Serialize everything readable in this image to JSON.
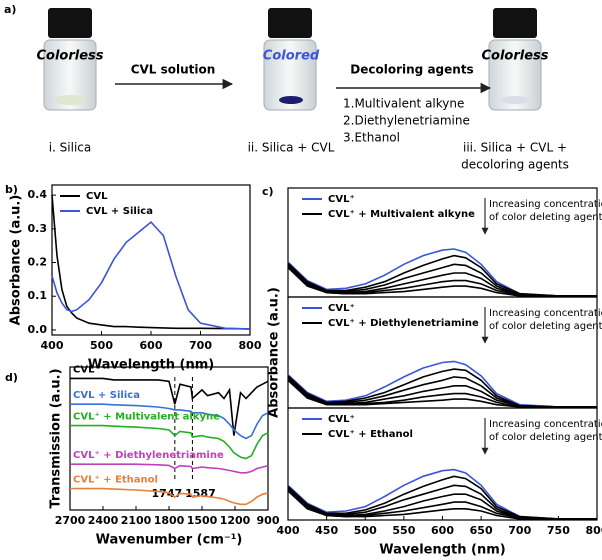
{
  "panel_a": {
    "label": "a)",
    "samples": [
      {
        "state": "Colorless",
        "caption": [
          "i. Silica"
        ]
      },
      {
        "state": "Colored",
        "caption": [
          "ii. Silica + CVL"
        ]
      },
      {
        "state": "Colorless",
        "caption": [
          "iii. Silica + CVL +",
          "decoloring agents"
        ]
      }
    ],
    "steps": [
      {
        "title": "CVL solution"
      },
      {
        "title": "Decoloring agents",
        "items": [
          "1.Multivalent alkyne",
          "2.Diethylenetriamine",
          "3.Ethanol"
        ]
      }
    ]
  },
  "chart_data": [
    {
      "type": "line",
      "panel": "b)",
      "xlabel": "Wavelength (nm)",
      "ylabel": "Absorbance (a.u.)",
      "x": [
        400,
        410,
        420,
        430,
        440,
        450,
        475,
        500,
        525,
        550,
        575,
        600,
        625,
        650,
        675,
        700,
        750,
        800
      ],
      "xlim": [
        400,
        800
      ],
      "xticks": [
        400,
        500,
        600,
        700,
        800
      ],
      "ylim": [
        -0.015,
        0.43
      ],
      "yticks": [
        {
          "value": 0,
          "label": "0.0"
        },
        0.1,
        0.2,
        0.3,
        0.4
      ],
      "series": [
        {
          "name": "CVL",
          "color": "#000000",
          "values": [
            0.4,
            0.22,
            0.12,
            0.07,
            0.05,
            0.035,
            0.02,
            0.015,
            0.01,
            0.01,
            0.008,
            0.007,
            0.006,
            0.005,
            0.005,
            0.005,
            0.004,
            0.003
          ]
        },
        {
          "name": "CVL + Silica",
          "color": "#3b55d9",
          "values": [
            0.16,
            0.11,
            0.08,
            0.06,
            0.055,
            0.06,
            0.09,
            0.14,
            0.21,
            0.26,
            0.29,
            0.32,
            0.28,
            0.16,
            0.06,
            0.02,
            0.005,
            0.003
          ]
        }
      ]
    },
    {
      "type": "line",
      "panel": "c)",
      "annotation": [
        "Increasing concentration",
        "of color deleting agent"
      ],
      "x": [
        400,
        425,
        450,
        475,
        500,
        525,
        550,
        575,
        600,
        615,
        630,
        650,
        670,
        700,
        750,
        800
      ],
      "xlim": [
        400,
        800
      ],
      "ylim": [
        0,
        1
      ],
      "series": [
        {
          "name": "CVL⁺",
          "color": "#3b55d9",
          "values": [
            0.32,
            0.15,
            0.07,
            0.08,
            0.12,
            0.2,
            0.3,
            0.38,
            0.43,
            0.44,
            0.41,
            0.3,
            0.14,
            0.03,
            0.01,
            0.01
          ]
        },
        {
          "name": "CVL⁺ + Multivalent alkyne",
          "color": "#000000",
          "values": [
            0.31,
            0.14,
            0.06,
            0.06,
            0.09,
            0.14,
            0.22,
            0.29,
            0.35,
            0.38,
            0.36,
            0.27,
            0.12,
            0.03,
            0.01,
            0.01
          ]
        },
        {
          "color": "#000000",
          "values": [
            0.3,
            0.13,
            0.05,
            0.05,
            0.07,
            0.11,
            0.17,
            0.22,
            0.27,
            0.3,
            0.29,
            0.22,
            0.1,
            0.02,
            0.01,
            0.01
          ]
        },
        {
          "color": "#000000",
          "values": [
            0.29,
            0.12,
            0.05,
            0.04,
            0.05,
            0.08,
            0.12,
            0.16,
            0.2,
            0.22,
            0.22,
            0.17,
            0.08,
            0.02,
            0.01,
            0.01
          ]
        },
        {
          "color": "#000000",
          "values": [
            0.28,
            0.11,
            0.04,
            0.03,
            0.04,
            0.06,
            0.08,
            0.11,
            0.14,
            0.15,
            0.15,
            0.12,
            0.06,
            0.02,
            0.01,
            0.01
          ]
        },
        {
          "color": "#000000",
          "values": [
            0.27,
            0.1,
            0.04,
            0.03,
            0.03,
            0.04,
            0.05,
            0.07,
            0.09,
            0.1,
            0.1,
            0.08,
            0.04,
            0.01,
            0.01,
            0.01
          ]
        }
      ]
    },
    {
      "type": "line",
      "ylabel": "Absorbance (a.u.)",
      "annotation": [
        "Increasing concentration",
        "of color deleting agent"
      ],
      "x": [
        400,
        425,
        450,
        475,
        500,
        525,
        550,
        575,
        600,
        615,
        630,
        650,
        670,
        700,
        750,
        800
      ],
      "xlim": [
        400,
        800
      ],
      "ylim": [
        0,
        1
      ],
      "series": [
        {
          "name": "CVL⁺",
          "color": "#3b55d9",
          "values": [
            0.3,
            0.14,
            0.06,
            0.07,
            0.11,
            0.19,
            0.28,
            0.36,
            0.41,
            0.42,
            0.39,
            0.29,
            0.13,
            0.03,
            0.01,
            0.01
          ]
        },
        {
          "name": "CVL⁺ + Diethylenetriamine",
          "color": "#000000",
          "values": [
            0.29,
            0.13,
            0.05,
            0.06,
            0.09,
            0.14,
            0.21,
            0.28,
            0.33,
            0.35,
            0.34,
            0.25,
            0.11,
            0.02,
            0.01,
            0.01
          ]
        },
        {
          "color": "#000000",
          "values": [
            0.28,
            0.12,
            0.05,
            0.05,
            0.07,
            0.11,
            0.16,
            0.21,
            0.25,
            0.28,
            0.27,
            0.2,
            0.09,
            0.02,
            0.01,
            0.01
          ]
        },
        {
          "color": "#000000",
          "values": [
            0.27,
            0.11,
            0.04,
            0.04,
            0.05,
            0.08,
            0.11,
            0.15,
            0.18,
            0.2,
            0.2,
            0.15,
            0.07,
            0.02,
            0.01,
            0.01
          ]
        },
        {
          "color": "#000000",
          "values": [
            0.26,
            0.1,
            0.04,
            0.03,
            0.04,
            0.05,
            0.07,
            0.1,
            0.12,
            0.13,
            0.13,
            0.1,
            0.05,
            0.01,
            0.01,
            0.01
          ]
        },
        {
          "color": "#000000",
          "values": [
            0.25,
            0.09,
            0.03,
            0.03,
            0.03,
            0.04,
            0.05,
            0.06,
            0.07,
            0.08,
            0.08,
            0.06,
            0.03,
            0.01,
            0.01,
            0.01
          ]
        }
      ]
    },
    {
      "type": "line",
      "xlabel": "Wavelength (nm)",
      "annotation": [
        "Increasing concentration",
        "of color deleting agent"
      ],
      "x": [
        400,
        425,
        450,
        475,
        500,
        525,
        550,
        575,
        600,
        615,
        630,
        650,
        670,
        700,
        750,
        800
      ],
      "xlim": [
        400,
        800
      ],
      "ylim": [
        0,
        1
      ],
      "xticks": [
        400,
        450,
        500,
        550,
        600,
        650,
        700,
        750,
        800
      ],
      "series": [
        {
          "name": "CVL⁺",
          "color": "#3b55d9",
          "values": [
            0.31,
            0.15,
            0.07,
            0.08,
            0.12,
            0.21,
            0.31,
            0.39,
            0.44,
            0.45,
            0.42,
            0.31,
            0.14,
            0.03,
            0.01,
            0.01
          ]
        },
        {
          "name": "CVL⁺ + Ethanol",
          "color": "#000000",
          "values": [
            0.3,
            0.14,
            0.06,
            0.06,
            0.09,
            0.15,
            0.23,
            0.3,
            0.36,
            0.39,
            0.37,
            0.28,
            0.12,
            0.03,
            0.01,
            0.01
          ]
        },
        {
          "color": "#000000",
          "values": [
            0.29,
            0.13,
            0.05,
            0.05,
            0.07,
            0.12,
            0.18,
            0.23,
            0.28,
            0.31,
            0.3,
            0.23,
            0.1,
            0.02,
            0.01,
            0.01
          ]
        },
        {
          "color": "#000000",
          "values": [
            0.28,
            0.12,
            0.05,
            0.04,
            0.05,
            0.08,
            0.12,
            0.17,
            0.21,
            0.23,
            0.23,
            0.18,
            0.08,
            0.02,
            0.01,
            0.01
          ]
        },
        {
          "color": "#000000",
          "values": [
            0.27,
            0.11,
            0.04,
            0.03,
            0.04,
            0.06,
            0.08,
            0.11,
            0.14,
            0.16,
            0.16,
            0.12,
            0.06,
            0.02,
            0.01,
            0.01
          ]
        },
        {
          "color": "#000000",
          "values": [
            0.26,
            0.1,
            0.04,
            0.03,
            0.03,
            0.04,
            0.05,
            0.07,
            0.09,
            0.1,
            0.1,
            0.08,
            0.04,
            0.01,
            0.01,
            0.01
          ]
        }
      ]
    },
    {
      "type": "line",
      "panel": "d)",
      "xlabel": "Wavenumber (cm⁻¹)",
      "ylabel": "Transmission (a.u.)",
      "x": [
        2700,
        2500,
        2400,
        2300,
        2100,
        1900,
        1800,
        1747,
        1700,
        1600,
        1587,
        1500,
        1450,
        1350,
        1300,
        1250,
        1210,
        1150,
        1100,
        1050,
        1000,
        950,
        900
      ],
      "xlim": [
        2700,
        900
      ],
      "xticks": [
        2700,
        2400,
        2100,
        1800,
        1500,
        1200,
        900
      ],
      "ylim": [
        0,
        5
      ],
      "vlines": [
        1747,
        1587
      ],
      "series": [
        {
          "name": "CVL",
          "color": "#000000",
          "values": [
            4.6,
            4.6,
            4.6,
            4.55,
            4.55,
            4.55,
            4.5,
            3.7,
            4.4,
            4.3,
            3.9,
            4.2,
            4.0,
            4.1,
            3.9,
            4.2,
            2.6,
            4.1,
            3.9,
            4.1,
            4.3,
            4.4,
            4.5
          ]
        },
        {
          "name": "CVL + Silica",
          "color": "#3b6fd9",
          "values": [
            3.7,
            3.7,
            3.7,
            3.68,
            3.65,
            3.6,
            3.55,
            3.5,
            3.5,
            3.45,
            3.4,
            3.4,
            3.35,
            3.3,
            3.2,
            3.0,
            2.8,
            2.6,
            2.5,
            2.6,
            3.0,
            3.3,
            3.4
          ]
        },
        {
          "name": "CVL⁺ + Multivalent alkyne",
          "color": "#22b022",
          "values": [
            2.95,
            2.95,
            2.95,
            2.93,
            2.9,
            2.85,
            2.8,
            2.6,
            2.75,
            2.7,
            2.55,
            2.6,
            2.55,
            2.5,
            2.4,
            2.2,
            2.0,
            1.85,
            1.8,
            1.9,
            2.3,
            2.6,
            2.7
          ]
        },
        {
          "name": "CVL⁺ + Diethylenetriamine",
          "color": "#c040c0",
          "values": [
            1.6,
            1.6,
            1.6,
            1.6,
            1.6,
            1.58,
            1.56,
            1.45,
            1.55,
            1.52,
            1.45,
            1.5,
            1.48,
            1.45,
            1.42,
            1.38,
            1.35,
            1.3,
            1.3,
            1.35,
            1.45,
            1.5,
            1.55
          ]
        },
        {
          "name": "CVL⁺ + Ethanol",
          "color": "#e8803a",
          "values": [
            0.75,
            0.75,
            0.75,
            0.73,
            0.7,
            0.65,
            0.6,
            0.45,
            0.58,
            0.55,
            0.45,
            0.5,
            0.47,
            0.42,
            0.38,
            0.3,
            0.25,
            0.2,
            0.2,
            0.3,
            0.45,
            0.55,
            0.6
          ]
        }
      ]
    }
  ]
}
